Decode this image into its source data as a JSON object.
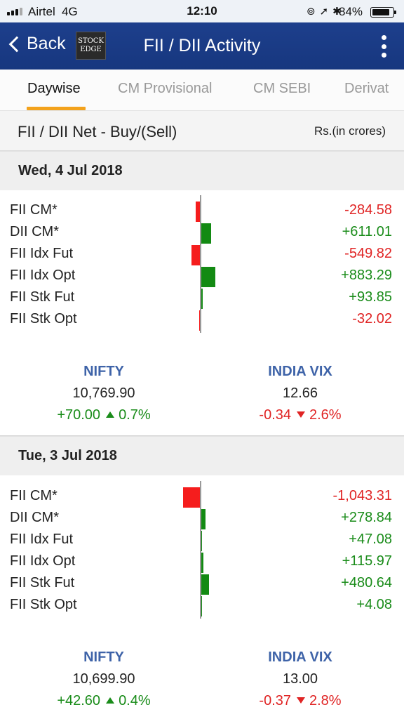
{
  "status_bar": {
    "carrier": "Airtel",
    "network": "4G",
    "time": "12:10",
    "battery_percent": "84%",
    "icons": [
      "rotation-lock-icon",
      "location-icon",
      "bluetooth-icon"
    ]
  },
  "nav": {
    "back_label": "Back",
    "logo_line1": "STOCK",
    "logo_line2": "EDGE",
    "title": "FII / DII Activity"
  },
  "tabs": [
    {
      "label": "Daywise",
      "active": true
    },
    {
      "label": "CM Provisional",
      "active": false
    },
    {
      "label": "CM SEBI",
      "active": false
    },
    {
      "label": "Derivat",
      "active": false
    }
  ],
  "summary": {
    "title": "FII / DII Net - Buy/(Sell)",
    "unit": "Rs.(in crores)"
  },
  "days": [
    {
      "date": "Wed, 4 Jul 2018",
      "rows": [
        {
          "label": "FII CM*",
          "value": "-284.58",
          "num": -284.58
        },
        {
          "label": "DII CM*",
          "value": "+611.01",
          "num": 611.01
        },
        {
          "label": "FII Idx Fut",
          "value": "-549.82",
          "num": -549.82
        },
        {
          "label": "FII Idx Opt",
          "value": "+883.29",
          "num": 883.29
        },
        {
          "label": "FII Stk Fut",
          "value": "+93.85",
          "num": 93.85
        },
        {
          "label": "FII Stk Opt",
          "value": "-32.02",
          "num": -32.02
        }
      ],
      "nifty": {
        "name": "NIFTY",
        "value": "10,769.90",
        "change": "+70.00",
        "pct": "0.7%",
        "direction": "up"
      },
      "vix": {
        "name": "INDIA VIX",
        "value": "12.66",
        "change": "-0.34",
        "pct": "2.6%",
        "direction": "down"
      }
    },
    {
      "date": "Tue, 3 Jul 2018",
      "rows": [
        {
          "label": "FII CM*",
          "value": "-1,043.31",
          "num": -1043.31
        },
        {
          "label": "DII CM*",
          "value": "+278.84",
          "num": 278.84
        },
        {
          "label": "FII Idx Fut",
          "value": "+47.08",
          "num": 47.08
        },
        {
          "label": "FII Idx Opt",
          "value": "+115.97",
          "num": 115.97
        },
        {
          "label": "FII Stk Fut",
          "value": "+480.64",
          "num": 480.64
        },
        {
          "label": "FII Stk Opt",
          "value": "+4.08",
          "num": 4.08
        }
      ],
      "nifty": {
        "name": "NIFTY",
        "value": "10,699.90",
        "change": "+42.60",
        "pct": "0.4%",
        "direction": "up"
      },
      "vix": {
        "name": "INDIA VIX",
        "value": "13.00",
        "change": "-0.37",
        "pct": "2.8%",
        "direction": "down"
      }
    }
  ],
  "colors": {
    "nav_bg": "#1d3f8c",
    "tab_accent": "#f3a21c",
    "positive": "#138a13",
    "negative": "#f51d1d",
    "index_name": "#3e63a8"
  }
}
